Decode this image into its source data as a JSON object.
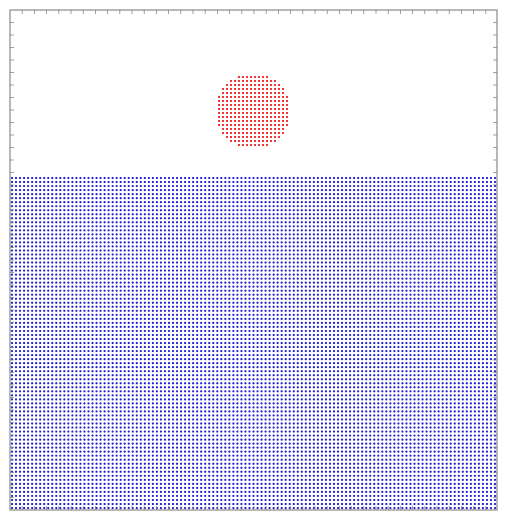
{
  "app": {
    "title": ""
  },
  "scene": {
    "description_visible_text": "",
    "background_color": "#ffffff",
    "frame_color": "#888888",
    "tick_color": "#888888",
    "fluid": {
      "color": "#1f1fcf",
      "columns": 121,
      "rows": 83
    },
    "droplet": {
      "color": "#ee2020",
      "shape": "circle"
    }
  }
}
